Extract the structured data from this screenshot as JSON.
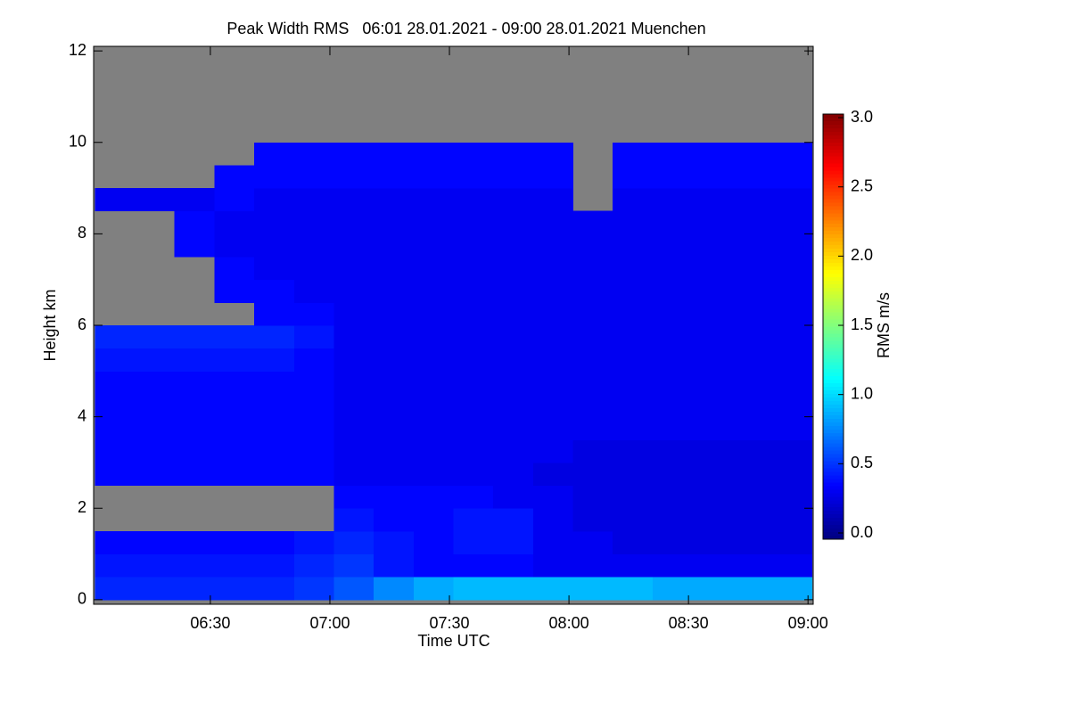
{
  "chart_data": {
    "type": "heatmap",
    "title": "Peak Width RMS   06:01 28.01.2021 - 09:00 28.01.2021 Muenchen",
    "xlabel": "Time UTC",
    "ylabel": "Height km",
    "colorbar_label": "RMS m/s",
    "colormap": "jet",
    "missing_color": "#808080",
    "x": [
      366,
      376,
      386,
      396,
      406,
      416,
      426,
      436,
      446,
      456,
      466,
      476,
      486,
      496,
      506,
      516,
      526,
      536
    ],
    "y": [
      0.25,
      0.75,
      1.25,
      1.75,
      2.25,
      2.75,
      3.25,
      3.75,
      4.25,
      4.75,
      5.25,
      5.75,
      6.25,
      6.75,
      7.25,
      7.75,
      8.25,
      8.75,
      9.25,
      9.75,
      10.25,
      10.75,
      11.25,
      11.75
    ],
    "z": [
      [
        0.45,
        0.45,
        0.45,
        0.45,
        0.45,
        0.5,
        0.6,
        0.75,
        0.85,
        0.9,
        0.9,
        0.9,
        0.9,
        0.9,
        0.85,
        0.85,
        0.85,
        0.85
      ],
      [
        0.4,
        0.4,
        0.4,
        0.4,
        0.4,
        0.45,
        0.5,
        0.4,
        0.35,
        0.35,
        0.35,
        0.3,
        0.3,
        0.3,
        0.3,
        0.3,
        0.3,
        0.3
      ],
      [
        0.35,
        0.35,
        0.35,
        0.35,
        0.35,
        0.4,
        0.45,
        0.4,
        0.35,
        0.4,
        0.4,
        0.3,
        0.3,
        0.25,
        0.25,
        0.25,
        0.25,
        0.25
      ],
      [
        null,
        null,
        null,
        null,
        null,
        null,
        0.4,
        0.35,
        0.35,
        0.4,
        0.4,
        0.3,
        0.25,
        0.25,
        0.25,
        0.25,
        0.25,
        0.25
      ],
      [
        null,
        null,
        null,
        null,
        null,
        null,
        0.35,
        0.35,
        0.35,
        0.35,
        0.3,
        0.3,
        0.25,
        0.25,
        0.25,
        0.25,
        0.25,
        0.25
      ],
      [
        0.35,
        0.35,
        0.35,
        0.35,
        0.35,
        0.35,
        0.3,
        0.3,
        0.3,
        0.3,
        0.3,
        0.25,
        0.25,
        0.25,
        0.25,
        0.25,
        0.25,
        0.25
      ],
      [
        0.35,
        0.35,
        0.35,
        0.35,
        0.35,
        0.35,
        0.3,
        0.3,
        0.3,
        0.3,
        0.3,
        0.3,
        0.25,
        0.25,
        0.25,
        0.25,
        0.25,
        0.25
      ],
      [
        0.35,
        0.35,
        0.35,
        0.35,
        0.35,
        0.35,
        0.3,
        0.3,
        0.3,
        0.3,
        0.3,
        0.3,
        0.3,
        0.3,
        0.3,
        0.3,
        0.3,
        0.3
      ],
      [
        0.35,
        0.35,
        0.35,
        0.35,
        0.35,
        0.35,
        0.3,
        0.3,
        0.3,
        0.3,
        0.3,
        0.3,
        0.3,
        0.3,
        0.3,
        0.3,
        0.3,
        0.3
      ],
      [
        0.35,
        0.35,
        0.35,
        0.35,
        0.35,
        0.35,
        0.3,
        0.3,
        0.3,
        0.3,
        0.3,
        0.3,
        0.3,
        0.3,
        0.3,
        0.3,
        0.3,
        0.3
      ],
      [
        0.4,
        0.4,
        0.4,
        0.4,
        0.4,
        0.35,
        0.3,
        0.3,
        0.3,
        0.3,
        0.3,
        0.3,
        0.3,
        0.3,
        0.3,
        0.3,
        0.3,
        0.3
      ],
      [
        0.45,
        0.45,
        0.45,
        0.45,
        0.45,
        0.4,
        0.3,
        0.3,
        0.3,
        0.3,
        0.3,
        0.3,
        0.3,
        0.3,
        0.3,
        0.3,
        0.3,
        0.3
      ],
      [
        null,
        null,
        null,
        null,
        0.35,
        0.35,
        0.3,
        0.3,
        0.3,
        0.3,
        0.3,
        0.3,
        0.3,
        0.3,
        0.3,
        0.3,
        0.3,
        0.3
      ],
      [
        null,
        null,
        null,
        0.35,
        0.35,
        0.3,
        0.3,
        0.3,
        0.3,
        0.3,
        0.3,
        0.3,
        0.3,
        0.3,
        0.3,
        0.3,
        0.3,
        0.3
      ],
      [
        null,
        null,
        null,
        0.35,
        0.3,
        0.3,
        0.3,
        0.3,
        0.3,
        0.3,
        0.3,
        0.3,
        0.3,
        0.3,
        0.3,
        0.3,
        0.3,
        0.3
      ],
      [
        null,
        null,
        0.35,
        0.3,
        0.3,
        0.3,
        0.3,
        0.3,
        0.3,
        0.3,
        0.3,
        0.3,
        0.3,
        0.3,
        0.3,
        0.3,
        0.3,
        0.3
      ],
      [
        null,
        null,
        0.35,
        0.3,
        0.3,
        0.3,
        0.3,
        0.3,
        0.3,
        0.3,
        0.3,
        0.3,
        0.3,
        0.3,
        0.3,
        0.3,
        0.3,
        0.3
      ],
      [
        0.3,
        0.3,
        0.3,
        0.35,
        0.3,
        0.3,
        0.3,
        0.3,
        0.3,
        0.3,
        0.3,
        0.3,
        null,
        0.3,
        0.3,
        0.3,
        0.3,
        0.3
      ],
      [
        null,
        null,
        null,
        0.35,
        0.35,
        0.35,
        0.35,
        0.35,
        0.35,
        0.35,
        0.35,
        0.35,
        null,
        0.35,
        0.35,
        0.35,
        0.35,
        0.35
      ],
      [
        null,
        null,
        null,
        null,
        0.35,
        0.35,
        0.35,
        0.35,
        0.35,
        0.35,
        0.35,
        0.35,
        null,
        0.35,
        0.35,
        0.35,
        0.35,
        0.35
      ],
      [
        null,
        null,
        null,
        null,
        null,
        null,
        null,
        null,
        null,
        null,
        null,
        null,
        null,
        null,
        null,
        null,
        null,
        null
      ],
      [
        null,
        null,
        null,
        null,
        null,
        null,
        null,
        null,
        null,
        null,
        null,
        null,
        null,
        null,
        null,
        null,
        null,
        null
      ],
      [
        null,
        null,
        null,
        null,
        null,
        null,
        null,
        null,
        null,
        null,
        null,
        null,
        null,
        null,
        null,
        null,
        null,
        null
      ],
      [
        null,
        null,
        null,
        null,
        null,
        null,
        null,
        null,
        null,
        null,
        null,
        null,
        null,
        null,
        null,
        null,
        null,
        null
      ]
    ],
    "xlim": [
      360.7,
      541.3
    ],
    "xticks": [
      {
        "value": 390,
        "label": "06:30"
      },
      {
        "value": 420,
        "label": "07:00"
      },
      {
        "value": 450,
        "label": "07:30"
      },
      {
        "value": 480,
        "label": "08:00"
      },
      {
        "value": 510,
        "label": "08:30"
      },
      {
        "value": 540,
        "label": "09:00"
      }
    ],
    "ylim": [
      -0.1,
      12.1
    ],
    "yticks": [
      0,
      2,
      4,
      6,
      8,
      10,
      12
    ],
    "clim": [
      -0.045,
      3.026
    ],
    "cticks": [
      {
        "value": 0,
        "label": "0.0"
      },
      {
        "value": 0.5,
        "label": "0.5"
      },
      {
        "value": 1,
        "label": "1.0"
      },
      {
        "value": 1.5,
        "label": "1.5"
      },
      {
        "value": 2,
        "label": "2.0"
      },
      {
        "value": 2.5,
        "label": "2.5"
      },
      {
        "value": 3,
        "label": "3.0"
      }
    ]
  }
}
